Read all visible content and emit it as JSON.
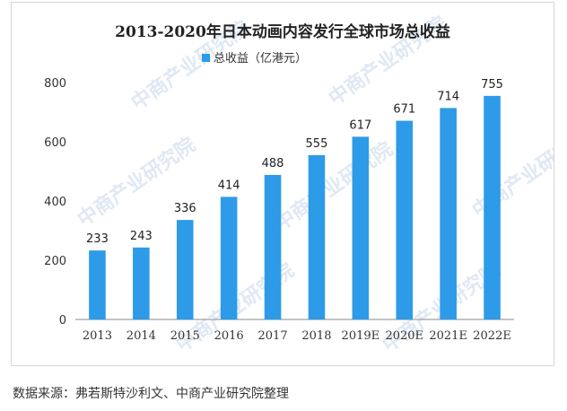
{
  "chart_data": {
    "type": "bar",
    "title": "2013-2020年日本动画内容发行全球市场总收益",
    "categories": [
      "2013",
      "2014",
      "2015",
      "2016",
      "2017",
      "2018",
      "2019E",
      "2020E",
      "2021E",
      "2022E"
    ],
    "series": [
      {
        "name": "总收益（亿港元）",
        "values": [
          233,
          243,
          336,
          414,
          488,
          555,
          617,
          671,
          714,
          755
        ]
      }
    ],
    "y_ticks": [
      0,
      200,
      400,
      600,
      800
    ],
    "ylim": [
      0,
      800
    ],
    "xlabel": "",
    "ylabel": "",
    "grid": false,
    "legend": "top-center",
    "bar_color": "#2d9be8",
    "watermark": "中商产业研究院"
  },
  "source_text": "数据来源：弗若斯特沙利文、中商产业研究院整理"
}
